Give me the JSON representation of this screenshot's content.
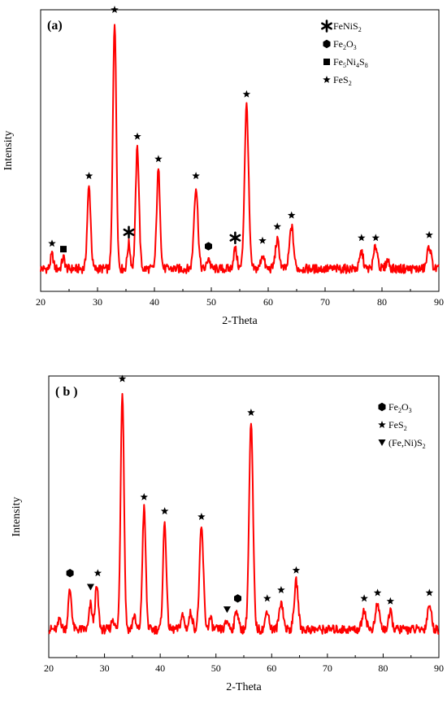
{
  "colors": {
    "trace": "#ff0000",
    "axis": "#000000",
    "marker": "#000000"
  },
  "chart_data": [
    {
      "type": "line",
      "panel_label": "(a)",
      "xlabel": "2-Theta",
      "ylabel": "Intensity",
      "xlim": [
        20,
        90
      ],
      "ylim": [
        0,
        100
      ],
      "x_ticks": [
        "20",
        "30",
        "40",
        "50",
        "60",
        "70",
        "80",
        "90"
      ],
      "baseline": 8,
      "peaks": [
        {
          "x": 22.0,
          "y": 13,
          "w": 0.25
        },
        {
          "x": 24.0,
          "y": 12,
          "w": 0.25
        },
        {
          "x": 28.5,
          "y": 37,
          "w": 0.3
        },
        {
          "x": 33.0,
          "y": 96,
          "w": 0.3
        },
        {
          "x": 35.5,
          "y": 17,
          "w": 0.25
        },
        {
          "x": 37.0,
          "y": 51,
          "w": 0.3
        },
        {
          "x": 40.7,
          "y": 43,
          "w": 0.3
        },
        {
          "x": 47.3,
          "y": 37,
          "w": 0.35
        },
        {
          "x": 49.5,
          "y": 12,
          "w": 0.25
        },
        {
          "x": 54.2,
          "y": 15,
          "w": 0.3
        },
        {
          "x": 56.2,
          "y": 66,
          "w": 0.35
        },
        {
          "x": 59.0,
          "y": 13,
          "w": 0.3
        },
        {
          "x": 61.6,
          "y": 18,
          "w": 0.35
        },
        {
          "x": 64.1,
          "y": 23,
          "w": 0.35
        },
        {
          "x": 76.4,
          "y": 14,
          "w": 0.3
        },
        {
          "x": 78.9,
          "y": 16,
          "w": 0.35
        },
        {
          "x": 81.0,
          "y": 11,
          "w": 0.3
        },
        {
          "x": 88.3,
          "y": 16,
          "w": 0.35
        }
      ],
      "markers": [
        {
          "x": 22.0,
          "y": 17,
          "shape": "smallstar"
        },
        {
          "x": 24.0,
          "y": 15,
          "shape": "square"
        },
        {
          "x": 28.5,
          "y": 41,
          "shape": "smallstar"
        },
        {
          "x": 33.0,
          "y": 100,
          "shape": "smallstar"
        },
        {
          "x": 35.5,
          "y": 21,
          "shape": "bigstar"
        },
        {
          "x": 37.0,
          "y": 55,
          "shape": "smallstar"
        },
        {
          "x": 40.7,
          "y": 47,
          "shape": "smallstar"
        },
        {
          "x": 47.3,
          "y": 41,
          "shape": "smallstar"
        },
        {
          "x": 49.5,
          "y": 16,
          "shape": "hexagon"
        },
        {
          "x": 54.2,
          "y": 19,
          "shape": "bigstar"
        },
        {
          "x": 56.2,
          "y": 70,
          "shape": "smallstar"
        },
        {
          "x": 59.0,
          "y": 18,
          "shape": "smallstar"
        },
        {
          "x": 61.6,
          "y": 23,
          "shape": "smallstar"
        },
        {
          "x": 64.1,
          "y": 27,
          "shape": "smallstar"
        },
        {
          "x": 76.4,
          "y": 19,
          "shape": "smallstar"
        },
        {
          "x": 78.9,
          "y": 19,
          "shape": "smallstar"
        },
        {
          "x": 88.3,
          "y": 20,
          "shape": "smallstar"
        }
      ],
      "legend": [
        {
          "shape": "bigstar",
          "parts": [
            [
              "FeNiS",
              ""
            ],
            [
              "2",
              "sub"
            ]
          ]
        },
        {
          "shape": "hexagon",
          "parts": [
            [
              "Fe",
              ""
            ],
            [
              "2",
              "sub"
            ],
            [
              "O",
              ""
            ],
            [
              "3",
              "sub"
            ]
          ]
        },
        {
          "shape": "square",
          "parts": [
            [
              "Fe",
              ""
            ],
            [
              "5",
              "sub"
            ],
            [
              "Ni",
              ""
            ],
            [
              "4",
              "sub"
            ],
            [
              "S",
              ""
            ],
            [
              "8",
              "sub"
            ]
          ]
        },
        {
          "shape": "smallstar",
          "parts": [
            [
              "FeS",
              ""
            ],
            [
              "2",
              "sub"
            ]
          ]
        }
      ]
    },
    {
      "type": "line",
      "panel_label": "( b )",
      "xlabel": "2-Theta",
      "ylabel": "Intensity",
      "xlim": [
        20,
        90
      ],
      "ylim": [
        0,
        100
      ],
      "x_ticks": [
        "20",
        "30",
        "40",
        "50",
        "60",
        "70",
        "80",
        "90"
      ],
      "baseline": 10,
      "peaks": [
        {
          "x": 22.0,
          "y": 14,
          "w": 0.25
        },
        {
          "x": 23.8,
          "y": 24,
          "w": 0.3
        },
        {
          "x": 27.5,
          "y": 19,
          "w": 0.25
        },
        {
          "x": 28.6,
          "y": 25,
          "w": 0.3
        },
        {
          "x": 31.5,
          "y": 14,
          "w": 0.25
        },
        {
          "x": 33.2,
          "y": 95,
          "w": 0.3
        },
        {
          "x": 35.3,
          "y": 15,
          "w": 0.25
        },
        {
          "x": 37.1,
          "y": 53,
          "w": 0.3
        },
        {
          "x": 40.8,
          "y": 48,
          "w": 0.3
        },
        {
          "x": 44.0,
          "y": 15,
          "w": 0.3
        },
        {
          "x": 45.5,
          "y": 16,
          "w": 0.3
        },
        {
          "x": 47.4,
          "y": 46,
          "w": 0.35
        },
        {
          "x": 49.0,
          "y": 14,
          "w": 0.25
        },
        {
          "x": 52.0,
          "y": 13,
          "w": 0.3
        },
        {
          "x": 53.7,
          "y": 17,
          "w": 0.3
        },
        {
          "x": 56.3,
          "y": 83,
          "w": 0.35
        },
        {
          "x": 59.2,
          "y": 17,
          "w": 0.3
        },
        {
          "x": 61.7,
          "y": 20,
          "w": 0.35
        },
        {
          "x": 64.4,
          "y": 27,
          "w": 0.35
        },
        {
          "x": 76.6,
          "y": 17,
          "w": 0.35
        },
        {
          "x": 79.0,
          "y": 19,
          "w": 0.35
        },
        {
          "x": 81.3,
          "y": 16,
          "w": 0.3
        },
        {
          "x": 88.3,
          "y": 19,
          "w": 0.35
        }
      ],
      "markers": [
        {
          "x": 23.8,
          "y": 30,
          "shape": "hexagon"
        },
        {
          "x": 27.5,
          "y": 25,
          "shape": "triangle"
        },
        {
          "x": 28.8,
          "y": 30,
          "shape": "smallstar"
        },
        {
          "x": 33.2,
          "y": 99,
          "shape": "smallstar"
        },
        {
          "x": 37.1,
          "y": 57,
          "shape": "smallstar"
        },
        {
          "x": 40.8,
          "y": 52,
          "shape": "smallstar"
        },
        {
          "x": 47.4,
          "y": 50,
          "shape": "smallstar"
        },
        {
          "x": 52.0,
          "y": 17,
          "shape": "triangle"
        },
        {
          "x": 53.9,
          "y": 21,
          "shape": "hexagon"
        },
        {
          "x": 56.3,
          "y": 87,
          "shape": "smallstar"
        },
        {
          "x": 59.2,
          "y": 21,
          "shape": "smallstar"
        },
        {
          "x": 61.7,
          "y": 24,
          "shape": "smallstar"
        },
        {
          "x": 64.4,
          "y": 31,
          "shape": "smallstar"
        },
        {
          "x": 76.6,
          "y": 21,
          "shape": "smallstar"
        },
        {
          "x": 79.0,
          "y": 23,
          "shape": "smallstar"
        },
        {
          "x": 81.3,
          "y": 20,
          "shape": "smallstar"
        },
        {
          "x": 88.3,
          "y": 23,
          "shape": "smallstar"
        }
      ],
      "legend": [
        {
          "shape": "hexagon",
          "parts": [
            [
              "Fe",
              ""
            ],
            [
              "2",
              "sub"
            ],
            [
              "O",
              ""
            ],
            [
              "3",
              "sub"
            ]
          ]
        },
        {
          "shape": "smallstar",
          "parts": [
            [
              "FeS",
              ""
            ],
            [
              "2",
              "sub"
            ]
          ]
        },
        {
          "shape": "triangle",
          "parts": [
            [
              "(Fe,Ni)S",
              ""
            ],
            [
              "2",
              "sub"
            ]
          ]
        }
      ]
    }
  ]
}
